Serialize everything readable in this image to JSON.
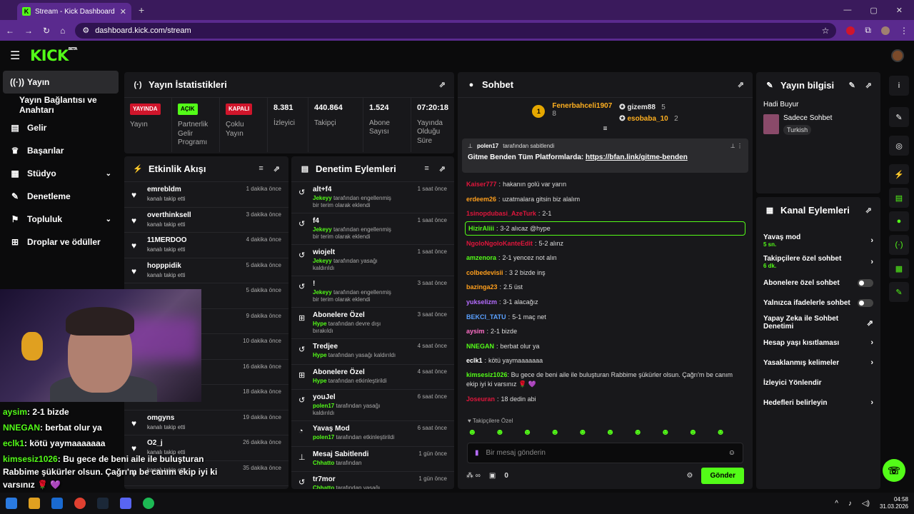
{
  "browser": {
    "tab_title": "Stream - Kick Dashboard",
    "url": "dashboard.kick.com/stream",
    "new_tab": "+",
    "close": "✕"
  },
  "header": {
    "logo": "KICK",
    "logo_sup": "BETA"
  },
  "sidebar": {
    "items": [
      {
        "label": "Yayın",
        "icon": "stream-icon",
        "glyph": "((·))",
        "active": true
      },
      {
        "label": "Yayın Bağlantısı ve Anahtarı",
        "sub": true
      },
      {
        "label": "Gelir",
        "icon": "revenue-icon",
        "glyph": "▤"
      },
      {
        "label": "Başarılar",
        "icon": "trophy-icon",
        "glyph": "♛"
      },
      {
        "label": "Stüdyo",
        "icon": "studio-icon",
        "glyph": "▦",
        "chevron": true
      },
      {
        "label": "Denetleme",
        "icon": "wrench-icon",
        "glyph": "✎"
      },
      {
        "label": "Topluluk",
        "icon": "community-icon",
        "glyph": "⚑",
        "chevron": true
      },
      {
        "label": "Droplar ve ödüller",
        "icon": "drops-icon",
        "glyph": "⊞"
      }
    ]
  },
  "stats": {
    "title": "Yayın İstatistikleri",
    "cells": [
      {
        "badge": "YAYINDA",
        "color": "red",
        "label": "Yayın"
      },
      {
        "badge": "AÇIK",
        "color": "green",
        "label": "Partnerlik Gelir Programı"
      },
      {
        "badge": "KAPALI",
        "color": "red",
        "label": "Çoklu Yayın"
      },
      {
        "value": "8.381",
        "label": "İzleyici"
      },
      {
        "value": "440.864",
        "label": "Takipçi"
      },
      {
        "value": "1.524",
        "label": "Abone Sayısı"
      },
      {
        "value": "07:20:18",
        "label": "Yayında Olduğu Süre"
      }
    ]
  },
  "activity": {
    "title": "Etkinlik Akışı",
    "items": [
      {
        "name": "emrebldm",
        "desc": "kanalı takip etti",
        "time": "1 dakika önce"
      },
      {
        "name": "overthinksell",
        "desc": "kanalı takip etti",
        "time": "3 dakika önce"
      },
      {
        "name": "11MERDOO",
        "desc": "kanalı takip etti",
        "time": "4 dakika önce"
      },
      {
        "name": "hopppidik",
        "desc": "kanalı takip etti",
        "time": "5 dakika önce"
      },
      {
        "name": "",
        "desc": "",
        "time": "5 dakika önce"
      },
      {
        "name": "",
        "desc": "",
        "time": "9 dakika önce"
      },
      {
        "name": "",
        "desc": "",
        "time": "10 dakika önce"
      },
      {
        "name": "",
        "desc": "",
        "time": "16 dakika önce"
      },
      {
        "name": "",
        "desc": "kanalı takip etti",
        "time": "18 dakika önce"
      },
      {
        "name": "omgyns",
        "desc": "kanalı takip etti",
        "time": "19 dakika önce"
      },
      {
        "name": "O2_j",
        "desc": "kanalı takip etti",
        "time": "26 dakika önce"
      },
      {
        "name": "",
        "desc": "kanalı takip etti",
        "time": "35 dakika önce"
      }
    ]
  },
  "moderation": {
    "title": "Denetim Eylemleri",
    "items": [
      {
        "name": "alt+f4",
        "actor": "Jekeyy",
        "desc": "tarafından engellenmiş bir terim olarak eklendi",
        "time": "1 saat önce",
        "glyph": "↺"
      },
      {
        "name": "f4",
        "actor": "Jekeyy",
        "desc": "tarafından engellenmiş bir terim olarak eklendi",
        "time": "1 saat önce",
        "glyph": "↺"
      },
      {
        "name": "wiojelt",
        "actor": "Jekeyy",
        "desc": "tarafından yasağı kaldırıldı",
        "time": "1 saat önce",
        "glyph": "↺"
      },
      {
        "name": "!",
        "actor": "Jekeyy",
        "desc": "tarafından engellenmiş bir terim olarak eklendi",
        "time": "3 saat önce",
        "glyph": "↺"
      },
      {
        "name": "Abonelere Özel",
        "actor": "Hype",
        "desc": "tarafından devre dışı bırakıldı",
        "time": "3 saat önce",
        "glyph": "⊞"
      },
      {
        "name": "Tredjee",
        "actor": "Hype",
        "desc": "tarafından yasağı kaldırıldı",
        "time": "4 saat önce",
        "glyph": "↺"
      },
      {
        "name": "Abonelere Özel",
        "actor": "Hype",
        "desc": "tarafından etkinleştirildi",
        "time": "4 saat önce",
        "glyph": "⊞"
      },
      {
        "name": "youJel",
        "actor": "polen17",
        "desc": "tarafından yasağı kaldırıldı",
        "time": "6 saat önce",
        "glyph": "↺"
      },
      {
        "name": "Yavaş Mod",
        "actor": "polen17",
        "desc": "tarafından etkinleştirildi",
        "time": "6 saat önce",
        "glyph": "◔"
      },
      {
        "name": "Mesaj Sabitlendi",
        "actor": "Chhatto",
        "desc": "tarafından",
        "time": "1 gün önce",
        "glyph": "⊥"
      },
      {
        "name": "tr7mor",
        "actor": "Chhatto",
        "desc": "tarafından yasağı kaldırıldı",
        "time": "1 gün önce",
        "glyph": "↺"
      }
    ]
  },
  "chat": {
    "title": "Sohbet",
    "leaderboard": [
      {
        "rank": "1",
        "name": "Fenerbahceli1907",
        "count": "8"
      },
      {
        "name": "gizem88",
        "count": "5"
      },
      {
        "name": "esobaba_10",
        "count": "2"
      }
    ],
    "pinned": {
      "user": "polen17",
      "note": "tarafından sabitlendi",
      "text": "Gitme Benden Tüm Platformlarda:",
      "link": "https://bfan.link/gitme-benden"
    },
    "messages": [
      {
        "user": "Kaiser777",
        "color": "#e0163c",
        "text": "hakanın golü var yarın"
      },
      {
        "user": "erdeem26",
        "color": "#ff9f1c",
        "text": "uzatmalara gitsin biz alalım"
      },
      {
        "user": "1sinopdubasi_AzeTurk",
        "color": "#e0163c",
        "text": "2-1"
      },
      {
        "user": "HizirAliii",
        "color": "#53fc18",
        "text": "3-2 alıcaz @hype",
        "highlight": true
      },
      {
        "user": "NgoloNgoloKanteEdit",
        "color": "#e0163c",
        "text": "5-2 alınz"
      },
      {
        "user": "amzenora",
        "color": "#53fc18",
        "text": "2-1 yencez not alın"
      },
      {
        "user": "colbedevisii",
        "color": "#ff9f1c",
        "text": "3 2 bizde inş"
      },
      {
        "user": "bazinga23",
        "color": "#ff9f1c",
        "text": "2.5 üst"
      },
      {
        "user": "yukselizm",
        "color": "#b56cff",
        "text": "3-1 alacağız"
      },
      {
        "user": "BEKCI_TATU",
        "color": "#5aa0ff",
        "text": "5-1 maç net"
      },
      {
        "user": "aysim",
        "color": "#ff6ec7",
        "text": "2-1 bizde"
      },
      {
        "user": "NNEGAN",
        "color": "#53fc18",
        "text": "berbat olur ya"
      },
      {
        "user": "eclk1",
        "color": "#ffffff",
        "text": "kötü yaymaaaaaaa"
      },
      {
        "user": "kimsesiz1026",
        "color": "#53fc18",
        "text": "Bu gece de beni aile ile buluşturan Rabbime şükürler olsun. Çağrı'm be canım ekip iyi ki varsınız 🌹 💜",
        "wrap": true
      },
      {
        "user": "Joseuran",
        "color": "#e0163c",
        "text": "18 dedin abi"
      }
    ],
    "followers_only": "Takipçilere Özel",
    "input_placeholder": "Bir mesaj gönderin",
    "count": "0",
    "send": "Gönder"
  },
  "info": {
    "title": "Yayın bilgisi",
    "stream_title": "Hadi Buyur",
    "category": "Sadece Sohbet",
    "tag": "Turkish"
  },
  "actions": {
    "title": "Kanal Eylemleri",
    "items": [
      {
        "label": "Yavaş mod",
        "sub": "5 sn.",
        "type": "chevron"
      },
      {
        "label": "Takipçilere özel sohbet",
        "sub": "6 dk.",
        "type": "chevron"
      },
      {
        "label": "Abonelere özel sohbet",
        "type": "toggle"
      },
      {
        "label": "Yalnızca ifadelerle sohbet",
        "type": "toggle"
      },
      {
        "label": "Yapay Zeka ile Sohbet Denetimi",
        "type": "external"
      },
      {
        "label": "Hesap yaşı kısıtlaması",
        "type": "chevron"
      },
      {
        "label": "Yasaklanmış kelimeler",
        "type": "chevron"
      },
      {
        "label": "İzleyici Yönlendir",
        "type": "none"
      },
      {
        "label": "Hedefleri belirleyin",
        "type": "chevron"
      }
    ]
  },
  "overlay": {
    "lines": [
      {
        "user": "aysim",
        "text": ": 2-1 bizde"
      },
      {
        "user": "NNEGAN",
        "text": ": berbat olur ya"
      },
      {
        "user": "eclk1",
        "text": ": kötü yaymaaaaaaa"
      },
      {
        "user": "kimsesiz1026",
        "text": ": Bu gece de beni aile ile buluşturan Rabbime şükürler olsun. Çağrı'm be canım ekip iyi ki varsınız 🌹 💜"
      },
      {
        "user": "",
        "text": "8 dedin abi"
      }
    ]
  },
  "taskbar": {
    "time": "04:58",
    "date": "31.03.2026"
  },
  "colors": {
    "accent": "#53fc18",
    "panel": "#18181b",
    "bg": "#0b0b0c",
    "browser": "#5a2a8e"
  }
}
